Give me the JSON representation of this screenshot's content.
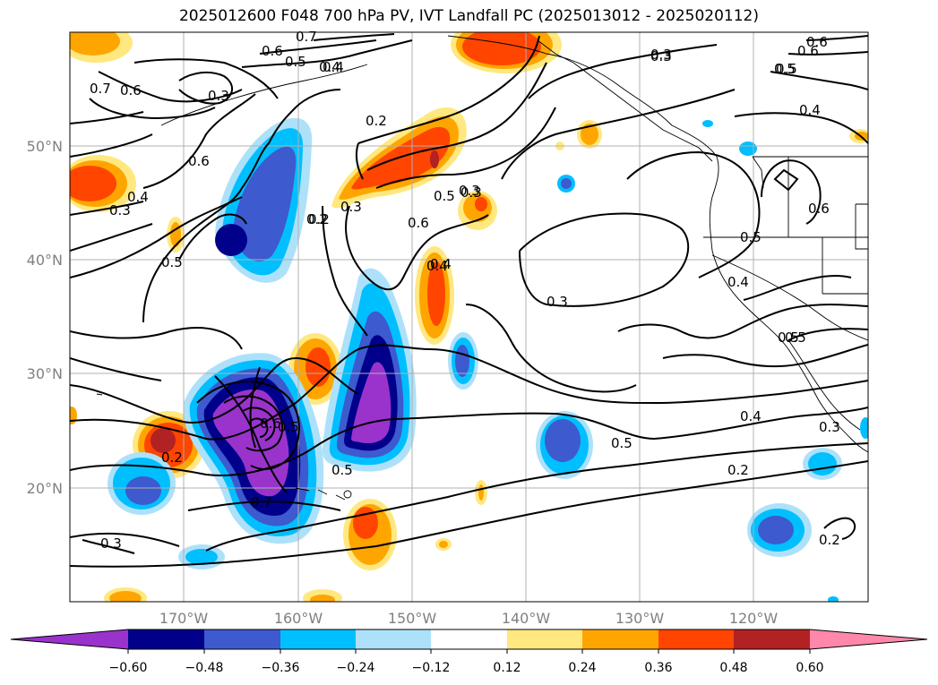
{
  "title": "2025012600 F048 700 hPa PV, IVT Landfall PC (2025013012 - 2025020112)",
  "lat_labels": [
    "50°N",
    "40°N",
    "30°N",
    "20°N"
  ],
  "lon_labels": [
    "170°W",
    "160°W",
    "150°W",
    "140°W",
    "130°W",
    "120°W"
  ],
  "colorbar": {
    "colors": [
      "#9933cc",
      "#00008b",
      "#3d5acf",
      "#00bfff",
      "#ade1fa",
      "#ffffff",
      "#ffe880",
      "#ffa500",
      "#ff4500",
      "#b22222",
      "#ff88aa"
    ],
    "tick_labels": [
      "−0.60",
      "−0.48",
      "−0.36",
      "−0.24",
      "−0.12",
      "0.12",
      "0.24",
      "0.36",
      "0.48",
      "0.60"
    ]
  },
  "contour_labels": [
    "0.7",
    "0.6",
    "0.5",
    "0.4",
    "0.3",
    "0.2",
    "0.6",
    "0.7",
    "0.6",
    "0.5",
    "0.4",
    "0.3",
    "0.2",
    "0.2",
    "0.3",
    "0.6",
    "0.5",
    "0.3",
    "0.4",
    "0.5",
    "0.3",
    "0.6",
    "0.5",
    "0.7",
    "0.4",
    "0.6",
    "0.5",
    "0.4",
    "0.5",
    "0.3",
    "0.4",
    "0.5",
    "0.2",
    "0.3",
    "0.2",
    "0.4",
    "0.5",
    "0.3",
    "0.2",
    "0.6",
    "0.5",
    "0.5",
    "0.4",
    "0.3",
    "0.6",
    "0.3"
  ]
}
